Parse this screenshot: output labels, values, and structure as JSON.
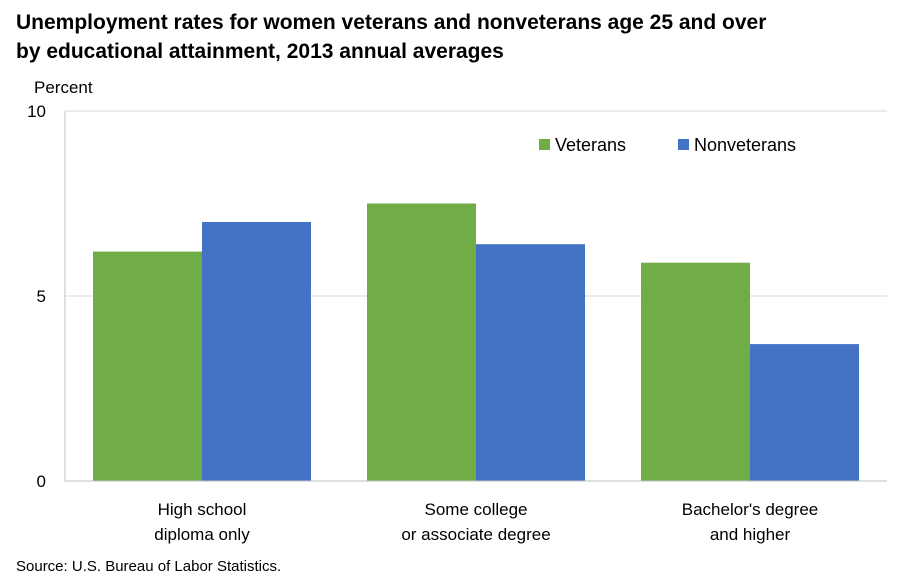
{
  "chart_data": {
    "type": "bar",
    "title_lines": [
      "Unemployment rates for women veterans and nonveterans age 25 and over",
      "by educational attainment, 2013 annual averages"
    ],
    "ylabel": "Percent",
    "ylim": [
      0,
      10
    ],
    "yticks": [
      0,
      5,
      10
    ],
    "categories": [
      [
        "High school",
        "diploma only"
      ],
      [
        "Some college",
        "or associate degree"
      ],
      [
        "Bachelor's degree",
        "and higher"
      ]
    ],
    "series": [
      {
        "name": "Veterans",
        "color": "#70ad47",
        "values": [
          6.2,
          7.5,
          5.9
        ]
      },
      {
        "name": "Nonveterans",
        "color": "#4472c4",
        "values": [
          7.0,
          6.4,
          3.7
        ]
      }
    ],
    "grid": true,
    "legend_position": "top-right"
  },
  "source": "Source: U.S. Bureau of Labor Statistics."
}
